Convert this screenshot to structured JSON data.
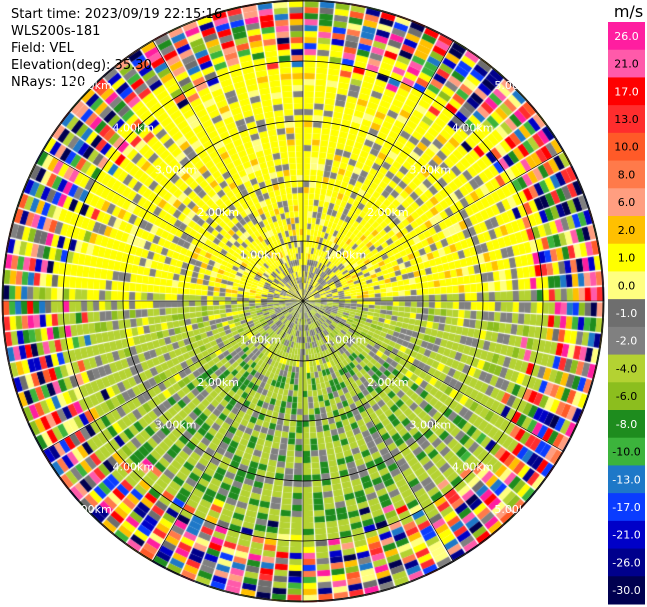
{
  "header": {
    "start_time": "Start time: 2023/09/19 22:15:16",
    "instrument": "WLS200s-181",
    "field": "Field: VEL",
    "elevation": "Elevation(deg): 35.30",
    "nrays": "NRays: 120"
  },
  "chart_data": {
    "type": "heatmap",
    "projection": "polar-ppi",
    "nrays": 120,
    "max_range_km": 6.2,
    "range_ring_labels": [
      "1.00km",
      "2.00km",
      "3.00km",
      "4.00km",
      "5.00km"
    ],
    "colorbar": {
      "unit": "m/s",
      "ticks": [
        "26.0",
        "21.0",
        "17.0",
        "13.0",
        "10.0",
        "8.0",
        "6.0",
        "2.0",
        "1.0",
        "0.0",
        "-1.0",
        "-2.0",
        "-4.0",
        "-6.0",
        "-8.0",
        "-10.0",
        "-13.0",
        "-17.0",
        "-21.0",
        "-26.0",
        "-30.0"
      ],
      "colors": [
        "#ff1ea0",
        "#ff5aaa",
        "#ff0000",
        "#ff2d2d",
        "#ff5a28",
        "#ff7a4a",
        "#ff9e80",
        "#ffc000",
        "#ffff00",
        "#ffff80",
        "#6e6e6e",
        "#808080",
        "#b4d232",
        "#8cbe1e",
        "#1e8c1e",
        "#3cb43c",
        "#1e78c8",
        "#0a3cff",
        "#0000c8",
        "#00008c",
        "#000050"
      ]
    }
  }
}
